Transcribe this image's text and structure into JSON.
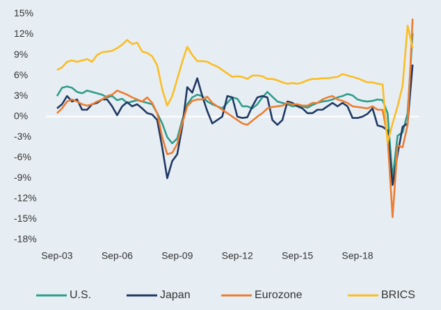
{
  "chart_data": {
    "type": "line",
    "categories": [
      "Sep-03",
      null,
      null,
      null,
      null,
      null,
      null,
      null,
      null,
      null,
      null,
      null,
      "Sep-06",
      null,
      null,
      null,
      null,
      null,
      null,
      null,
      null,
      null,
      null,
      null,
      "Sep-09",
      null,
      null,
      null,
      null,
      null,
      null,
      null,
      null,
      null,
      null,
      null,
      "Sep-12",
      null,
      null,
      null,
      null,
      null,
      null,
      null,
      null,
      null,
      null,
      null,
      "Sep-15",
      null,
      null,
      null,
      null,
      null,
      null,
      null,
      null,
      null,
      null,
      null,
      "Sep-18",
      null,
      null,
      null,
      null,
      null,
      null,
      null,
      null,
      null,
      null,
      null
    ],
    "ylim": [
      -18,
      15
    ],
    "yticks": [
      {
        "value": 15,
        "label": "15%"
      },
      {
        "value": 12,
        "label": "12%"
      },
      {
        "value": 9,
        "label": "9%"
      },
      {
        "value": 6,
        "label": "6%"
      },
      {
        "value": 3,
        "label": "3%"
      },
      {
        "value": 0,
        "label": "0%"
      },
      {
        "value": -3,
        "label": "-3%"
      },
      {
        "value": -6,
        "label": "-6%"
      },
      {
        "value": -9,
        "label": "-9%"
      },
      {
        "value": -12,
        "label": "-12%"
      },
      {
        "value": -15,
        "label": "-15%"
      },
      {
        "value": -18,
        "label": "-18%"
      }
    ],
    "zero_line": true,
    "legend": "bottom",
    "series": [
      {
        "name": "U.S.",
        "color": "#2e9c8a",
        "values": [
          3.0,
          4.2,
          4.4,
          4.2,
          3.6,
          3.4,
          3.8,
          3.6,
          3.4,
          3.2,
          2.8,
          3.0,
          2.4,
          2.6,
          2.0,
          2.2,
          2.4,
          2.2,
          2.0,
          1.8,
          0.5,
          -1.0,
          -3.0,
          -3.9,
          -3.2,
          -0.5,
          1.8,
          2.8,
          3.2,
          3.0,
          2.2,
          1.8,
          1.5,
          1.2,
          2.0,
          2.8,
          2.6,
          1.5,
          1.5,
          1.2,
          1.8,
          2.8,
          3.6,
          2.9,
          2.2,
          2.0,
          1.8,
          1.5,
          1.6,
          1.5,
          1.3,
          1.7,
          2.0,
          2.2,
          2.3,
          2.5,
          2.8,
          3.0,
          3.3,
          3.1,
          2.5,
          2.3,
          2.2,
          2.3,
          2.5,
          2.4,
          0.5,
          -9.0,
          -2.8,
          -2.3,
          0.5,
          12.2
        ]
      },
      {
        "name": "Japan",
        "color": "#1f3864",
        "values": [
          1.2,
          1.8,
          3.0,
          2.2,
          2.5,
          1.0,
          1.0,
          1.8,
          2.0,
          2.5,
          2.5,
          1.5,
          0.2,
          1.5,
          2.1,
          1.5,
          1.8,
          1.2,
          0.5,
          0.3,
          -0.5,
          -4.5,
          -9.0,
          -6.5,
          -5.5,
          -1.5,
          4.3,
          3.5,
          5.6,
          3.0,
          0.8,
          -1.0,
          -0.5,
          0.0,
          3.0,
          2.8,
          0.0,
          -0.2,
          -0.1,
          1.5,
          2.8,
          3.0,
          2.8,
          -0.5,
          -1.2,
          -0.5,
          2.2,
          2.0,
          1.5,
          1.2,
          0.5,
          0.5,
          1.0,
          1.0,
          1.5,
          2.0,
          1.5,
          2.0,
          1.5,
          -0.2,
          -0.2,
          0.0,
          0.4,
          1.2,
          -1.3,
          -1.5,
          -2.0,
          -10.0,
          -5.5,
          -1.5,
          -1.0,
          7.6
        ]
      },
      {
        "name": "Eurozone",
        "color": "#ed7d31",
        "values": [
          0.5,
          1.2,
          2.2,
          2.5,
          2.2,
          1.8,
          1.6,
          1.8,
          2.2,
          2.5,
          3.0,
          3.2,
          3.8,
          3.5,
          3.2,
          2.8,
          2.5,
          2.2,
          2.8,
          2.0,
          0.5,
          -3.0,
          -5.5,
          -5.3,
          -4.0,
          -1.0,
          1.5,
          2.3,
          2.5,
          2.5,
          2.9,
          2.0,
          1.5,
          1.0,
          0.5,
          0.0,
          -0.5,
          -1.0,
          -1.2,
          -0.6,
          0.0,
          0.5,
          1.2,
          1.4,
          1.5,
          1.6,
          2.0,
          1.8,
          1.8,
          1.6,
          1.6,
          2.0,
          2.0,
          2.5,
          2.8,
          3.0,
          2.5,
          2.3,
          2.0,
          1.5,
          1.4,
          1.3,
          1.2,
          1.5,
          1.0,
          1.0,
          -3.0,
          -14.7,
          -4.2,
          -4.5,
          -1.2,
          14.3
        ]
      },
      {
        "name": "BRICS",
        "color": "#fbbd24",
        "values": [
          6.8,
          7.2,
          8.0,
          8.2,
          8.0,
          8.2,
          8.4,
          8.0,
          9.0,
          9.4,
          9.5,
          9.6,
          10.0,
          10.5,
          11.2,
          10.6,
          10.8,
          9.5,
          9.3,
          8.8,
          7.5,
          4.0,
          1.6,
          3.0,
          5.5,
          8.0,
          10.2,
          9.0,
          8.1,
          8.1,
          8.0,
          7.6,
          7.3,
          6.8,
          6.3,
          5.8,
          5.9,
          5.8,
          5.5,
          6.0,
          6.0,
          5.9,
          5.5,
          5.5,
          5.3,
          5.0,
          4.8,
          4.9,
          4.8,
          5.0,
          5.3,
          5.5,
          5.5,
          5.6,
          5.6,
          5.7,
          5.8,
          6.2,
          6.0,
          5.8,
          5.6,
          5.3,
          5.0,
          5.0,
          4.8,
          4.7,
          -3.8,
          -1.0,
          1.5,
          4.5,
          13.3,
          10.0
        ]
      }
    ]
  }
}
